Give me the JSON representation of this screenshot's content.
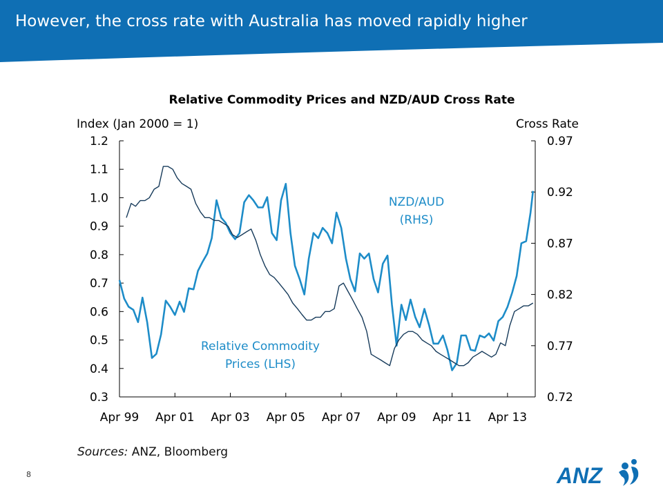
{
  "slide": {
    "title": "However, the cross rate with Australia has moved rapidly higher",
    "sources_label": "Sources:",
    "sources_text": "ANZ, Bloomberg",
    "page_number": "8",
    "logo_text": "ANZ",
    "colors": {
      "header": "#0f6fb4",
      "chart_title": "#000000",
      "nzd_aud_line": "#1d8cc8",
      "commodity_line": "#163a5a",
      "series_label": "#1d8cc8",
      "logo": "#0f6fb4"
    }
  },
  "chart_data": {
    "type": "line",
    "title": "Relative Commodity Prices and NZD/AUD Cross Rate",
    "left_axis": {
      "label": "Index (Jan 2000 = 1)",
      "range": [
        0.3,
        1.2
      ],
      "ticks": [
        1.2,
        1.1,
        1.0,
        0.9,
        0.8,
        0.7,
        0.6,
        0.5,
        0.4,
        0.3
      ],
      "tick_labels": [
        "1.2",
        "1.1",
        "1.0",
        "0.9",
        "0.8",
        "0.7",
        "0.6",
        "0.5",
        "0.4",
        "0.3"
      ]
    },
    "right_axis": {
      "label": "Cross Rate",
      "range": [
        0.72,
        0.97
      ],
      "ticks": [
        0.97,
        0.92,
        0.87,
        0.82,
        0.77,
        0.72
      ],
      "tick_labels": [
        "0.97",
        "0.92",
        "0.87",
        "0.82",
        "0.77",
        "0.72"
      ]
    },
    "x_axis": {
      "range": [
        1999.25,
        2014.25
      ],
      "ticks": [
        1999.25,
        2001.25,
        2003.25,
        2005.25,
        2007.25,
        2009.25,
        2011.25,
        2013.25
      ],
      "tick_labels": [
        "Apr 99",
        "Apr 01",
        "Apr 03",
        "Apr 05",
        "Apr 07",
        "Apr 09",
        "Apr 11",
        "Apr 13"
      ]
    },
    "grid": false,
    "series": [
      {
        "name": "NZD/AUD (RHS)",
        "label_lines": [
          "NZD/AUD",
          "(RHS)"
        ],
        "axis": "right",
        "x": [
          1999.25,
          1999.42,
          1999.58,
          1999.75,
          1999.92,
          2000.08,
          2000.25,
          2000.42,
          2000.58,
          2000.75,
          2000.92,
          2001.08,
          2001.25,
          2001.42,
          2001.58,
          2001.75,
          2001.92,
          2002.08,
          2002.25,
          2002.42,
          2002.58,
          2002.75,
          2002.92,
          2003.08,
          2003.25,
          2003.42,
          2003.58,
          2003.75,
          2003.92,
          2004.08,
          2004.25,
          2004.42,
          2004.58,
          2004.75,
          2004.92,
          2005.08,
          2005.25,
          2005.42,
          2005.58,
          2005.75,
          2005.92,
          2006.08,
          2006.25,
          2006.42,
          2006.58,
          2006.75,
          2006.92,
          2007.08,
          2007.25,
          2007.42,
          2007.58,
          2007.75,
          2007.92,
          2008.08,
          2008.25,
          2008.42,
          2008.58,
          2008.75,
          2008.92,
          2009.08,
          2009.25,
          2009.42,
          2009.58,
          2009.75,
          2009.92,
          2010.08,
          2010.25,
          2010.42,
          2010.58,
          2010.75,
          2010.92,
          2011.08,
          2011.25,
          2011.42,
          2011.58,
          2011.75,
          2011.92,
          2012.08,
          2012.25,
          2012.42,
          2012.58,
          2012.75,
          2012.92,
          2013.08,
          2013.25,
          2013.42,
          2013.58,
          2013.75,
          2013.92,
          2014.08,
          2014.17
        ],
        "values": [
          0.834,
          0.816,
          0.808,
          0.805,
          0.793,
          0.817,
          0.793,
          0.758,
          0.762,
          0.781,
          0.814,
          0.808,
          0.8,
          0.813,
          0.803,
          0.826,
          0.825,
          0.843,
          0.852,
          0.86,
          0.875,
          0.912,
          0.895,
          0.89,
          0.88,
          0.874,
          0.88,
          0.91,
          0.917,
          0.912,
          0.905,
          0.905,
          0.915,
          0.88,
          0.873,
          0.912,
          0.928,
          0.88,
          0.848,
          0.835,
          0.82,
          0.855,
          0.88,
          0.875,
          0.885,
          0.88,
          0.87,
          0.9,
          0.885,
          0.855,
          0.835,
          0.823,
          0.86,
          0.855,
          0.86,
          0.835,
          0.822,
          0.85,
          0.858,
          0.81,
          0.77,
          0.81,
          0.795,
          0.815,
          0.798,
          0.788,
          0.806,
          0.79,
          0.772,
          0.772,
          0.78,
          0.766,
          0.746,
          0.753,
          0.78,
          0.78,
          0.766,
          0.765,
          0.78,
          0.778,
          0.782,
          0.775,
          0.794,
          0.798,
          0.808,
          0.822,
          0.838,
          0.87,
          0.872,
          0.9,
          0.921
        ]
      },
      {
        "name": "Relative Commodity Prices (LHS)",
        "label_lines": [
          "Relative Commodity",
          "Prices (LHS)"
        ],
        "axis": "left",
        "x": [
          1999.5,
          1999.67,
          1999.83,
          2000.0,
          2000.17,
          2000.33,
          2000.5,
          2000.67,
          2000.83,
          2001.0,
          2001.17,
          2001.33,
          2001.5,
          2001.67,
          2001.83,
          2002.0,
          2002.17,
          2002.33,
          2002.5,
          2002.67,
          2002.83,
          2003.0,
          2003.17,
          2003.33,
          2003.5,
          2003.67,
          2003.83,
          2004.0,
          2004.17,
          2004.33,
          2004.5,
          2004.67,
          2004.83,
          2005.0,
          2005.17,
          2005.33,
          2005.5,
          2005.67,
          2005.83,
          2006.0,
          2006.17,
          2006.33,
          2006.5,
          2006.67,
          2006.83,
          2007.0,
          2007.17,
          2007.33,
          2007.5,
          2007.67,
          2007.83,
          2008.0,
          2008.17,
          2008.33,
          2008.5,
          2008.67,
          2008.83,
          2009.0,
          2009.17,
          2009.33,
          2009.5,
          2009.67,
          2009.83,
          2010.0,
          2010.17,
          2010.33,
          2010.5,
          2010.67,
          2010.83,
          2011.0,
          2011.17,
          2011.33,
          2011.5,
          2011.67,
          2011.83,
          2012.0,
          2012.17,
          2012.33,
          2012.5,
          2012.67,
          2012.83,
          2013.0,
          2013.17,
          2013.33,
          2013.5,
          2013.67,
          2013.83,
          2014.0,
          2014.17
        ],
        "values": [
          0.93,
          0.98,
          0.97,
          0.99,
          0.99,
          1.0,
          1.03,
          1.04,
          1.11,
          1.11,
          1.1,
          1.07,
          1.05,
          1.04,
          1.03,
          0.98,
          0.95,
          0.93,
          0.93,
          0.92,
          0.92,
          0.91,
          0.9,
          0.87,
          0.86,
          0.87,
          0.88,
          0.89,
          0.85,
          0.8,
          0.76,
          0.73,
          0.72,
          0.7,
          0.68,
          0.66,
          0.63,
          0.61,
          0.59,
          0.57,
          0.57,
          0.58,
          0.58,
          0.6,
          0.6,
          0.61,
          0.69,
          0.7,
          0.67,
          0.64,
          0.61,
          0.58,
          0.53,
          0.45,
          0.44,
          0.43,
          0.42,
          0.41,
          0.47,
          0.5,
          0.52,
          0.53,
          0.53,
          0.52,
          0.5,
          0.49,
          0.48,
          0.46,
          0.45,
          0.44,
          0.43,
          0.42,
          0.41,
          0.41,
          0.42,
          0.44,
          0.45,
          0.46,
          0.45,
          0.44,
          0.45,
          0.49,
          0.48,
          0.55,
          0.6,
          0.61,
          0.62,
          0.62,
          0.63
        ]
      }
    ]
  }
}
